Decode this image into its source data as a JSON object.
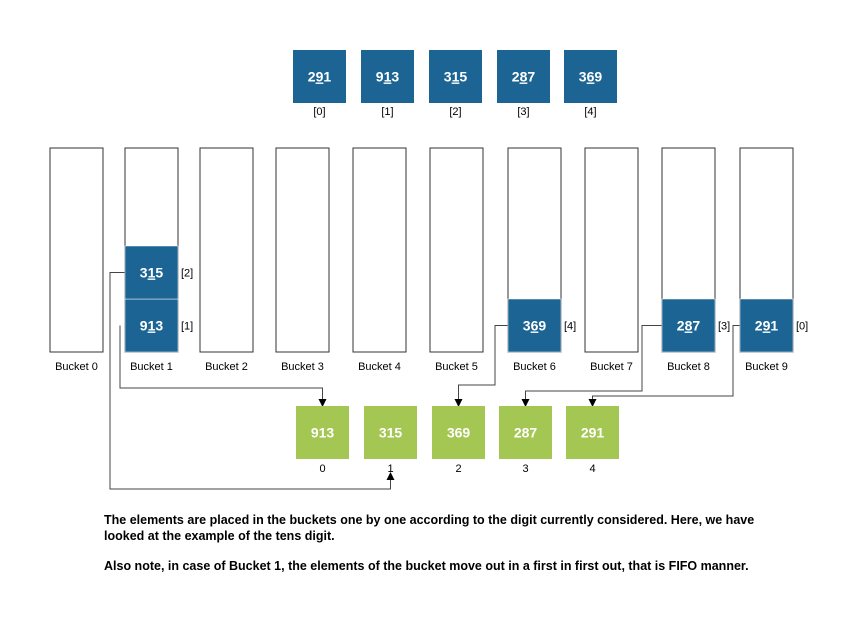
{
  "colors": {
    "original_box": "#1b6494",
    "result_box": "#a4c653",
    "bucket_border": "#333333"
  },
  "original_array": [
    {
      "value": "291",
      "underlined_digit_index": 1,
      "index_label": "[0]"
    },
    {
      "value": "913",
      "underlined_digit_index": 1,
      "index_label": "[1]"
    },
    {
      "value": "315",
      "underlined_digit_index": 1,
      "index_label": "[2]"
    },
    {
      "value": "287",
      "underlined_digit_index": 1,
      "index_label": "[3]"
    },
    {
      "value": "369",
      "underlined_digit_index": 1,
      "index_label": "[4]"
    }
  ],
  "buckets": [
    {
      "label": "Bucket 0",
      "items": []
    },
    {
      "label": "Bucket 1",
      "items": [
        {
          "value": "913",
          "index_label": "[1]"
        },
        {
          "value": "315",
          "index_label": "[2]"
        }
      ]
    },
    {
      "label": "Bucket 2",
      "items": []
    },
    {
      "label": "Bucket 3",
      "items": []
    },
    {
      "label": "Bucket 4",
      "items": []
    },
    {
      "label": "Bucket 5",
      "items": []
    },
    {
      "label": "Bucket 6",
      "items": [
        {
          "value": "369",
          "index_label": "[4]"
        }
      ]
    },
    {
      "label": "Bucket 7",
      "items": []
    },
    {
      "label": "Bucket 8",
      "items": [
        {
          "value": "287",
          "index_label": "[3]"
        }
      ]
    },
    {
      "label": "Bucket 9",
      "items": [
        {
          "value": "291",
          "index_label": "[0]"
        }
      ]
    }
  ],
  "result_array": [
    {
      "value": "913",
      "index_label": "0"
    },
    {
      "value": "315",
      "index_label": "1"
    },
    {
      "value": "369",
      "index_label": "2"
    },
    {
      "value": "287",
      "index_label": "3"
    },
    {
      "value": "291",
      "index_label": "4"
    }
  ],
  "caption": {
    "paragraph1": "The elements are placed in the buckets one by one according to the digit currently considered. Here, we have looked at the example of the tens digit.",
    "paragraph2": "Also note, in case of Bucket 1, the elements of the bucket move out in a first in first out, that is FIFO manner."
  }
}
